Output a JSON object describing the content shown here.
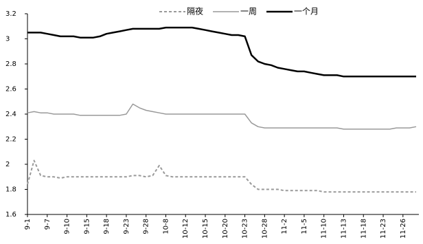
{
  "chart_data": {
    "type": "line",
    "categories": [
      "9-1",
      null,
      null,
      "9-7",
      null,
      null,
      "9-10",
      null,
      null,
      "9-15",
      null,
      null,
      "9-18",
      null,
      null,
      "9-23",
      null,
      null,
      "9-28",
      null,
      null,
      "10-8",
      null,
      null,
      "10-12",
      null,
      null,
      "10-15",
      null,
      null,
      "10-20",
      null,
      null,
      "10-23",
      null,
      null,
      "10-28",
      null,
      null,
      "11-2",
      null,
      null,
      "11-5",
      null,
      null,
      "11-10",
      null,
      null,
      "11-13",
      null,
      null,
      "11-18",
      null,
      null,
      "11-23",
      null,
      null,
      "11-26",
      null,
      null
    ],
    "series": [
      {
        "name": "隔夜",
        "color": "#999999",
        "style": "dashed",
        "width": 2,
        "values": [
          1.84,
          2.03,
          1.91,
          1.9,
          1.9,
          1.89,
          1.9,
          1.9,
          1.9,
          1.9,
          1.9,
          1.9,
          1.9,
          1.9,
          1.9,
          1.9,
          1.91,
          1.91,
          1.9,
          1.91,
          1.99,
          1.91,
          1.9,
          1.9,
          1.9,
          1.9,
          1.9,
          1.9,
          1.9,
          1.9,
          1.9,
          1.9,
          1.9,
          1.9,
          1.84,
          1.8,
          1.8,
          1.8,
          1.8,
          1.79,
          1.79,
          1.79,
          1.79,
          1.79,
          1.79,
          1.78,
          1.78,
          1.78,
          1.78,
          1.78,
          1.78,
          1.78,
          1.78,
          1.78,
          1.78,
          1.78,
          1.78,
          1.78,
          1.78,
          1.78
        ]
      },
      {
        "name": "一周",
        "color": "#999999",
        "style": "solid",
        "width": 1.5,
        "values": [
          2.41,
          2.42,
          2.41,
          2.41,
          2.4,
          2.4,
          2.4,
          2.4,
          2.39,
          2.39,
          2.39,
          2.39,
          2.39,
          2.39,
          2.39,
          2.4,
          2.48,
          2.45,
          2.43,
          2.42,
          2.41,
          2.4,
          2.4,
          2.4,
          2.4,
          2.4,
          2.4,
          2.4,
          2.4,
          2.4,
          2.4,
          2.4,
          2.4,
          2.4,
          2.33,
          2.3,
          2.29,
          2.29,
          2.29,
          2.29,
          2.29,
          2.29,
          2.29,
          2.29,
          2.29,
          2.29,
          2.29,
          2.29,
          2.28,
          2.28,
          2.28,
          2.28,
          2.28,
          2.28,
          2.28,
          2.28,
          2.29,
          2.29,
          2.29,
          2.3
        ]
      },
      {
        "name": "一个月",
        "color": "#000000",
        "style": "solid",
        "width": 2.5,
        "values": [
          3.05,
          3.05,
          3.05,
          3.04,
          3.03,
          3.02,
          3.02,
          3.02,
          3.01,
          3.01,
          3.01,
          3.02,
          3.04,
          3.05,
          3.06,
          3.07,
          3.08,
          3.08,
          3.08,
          3.08,
          3.08,
          3.09,
          3.09,
          3.09,
          3.09,
          3.09,
          3.08,
          3.07,
          3.06,
          3.05,
          3.04,
          3.03,
          3.03,
          3.02,
          2.87,
          2.82,
          2.8,
          2.79,
          2.77,
          2.76,
          2.75,
          2.74,
          2.74,
          2.73,
          2.72,
          2.71,
          2.71,
          2.71,
          2.7,
          2.7,
          2.7,
          2.7,
          2.7,
          2.7,
          2.7,
          2.7,
          2.7,
          2.7,
          2.7,
          2.7
        ]
      }
    ],
    "ylim": [
      1.6,
      3.2
    ],
    "yticks": [
      1.6,
      1.8,
      2,
      2.2,
      2.4,
      2.6,
      2.8,
      3,
      3.2
    ],
    "grid": false
  }
}
